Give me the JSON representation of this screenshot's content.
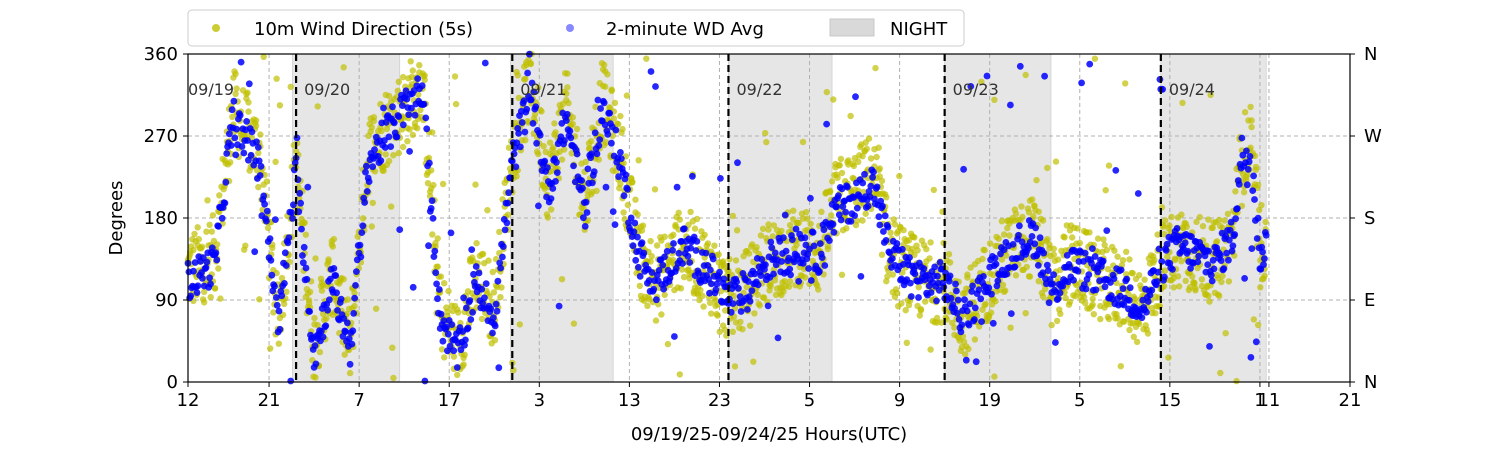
{
  "chart_data": {
    "type": "scatter",
    "xlabel": "09/19/25-09/24/25  Hours(UTC)",
    "ylabel": "Degrees",
    "ylim": [
      0,
      360
    ],
    "yticks": [
      0,
      90,
      180,
      270,
      360
    ],
    "right_ticks": [
      {
        "value": 0,
        "label": "N"
      },
      {
        "value": 90,
        "label": "E"
      },
      {
        "value": 180,
        "label": "S"
      },
      {
        "value": 270,
        "label": "W"
      },
      {
        "value": 360,
        "label": "N"
      }
    ],
    "xlim_hours": [
      0,
      129
    ],
    "xticks": [
      {
        "hour": 0,
        "label": "12"
      },
      {
        "hour": 9,
        "label": "21"
      },
      {
        "hour": 19,
        "label": "7"
      },
      {
        "hour": 29,
        "label": "17"
      },
      {
        "hour": 39,
        "label": "3"
      },
      {
        "hour": 49,
        "label": "13"
      },
      {
        "hour": 59,
        "label": "23"
      },
      {
        "hour": 69,
        "label": "5"
      },
      {
        "hour": 79,
        "label": "9"
      },
      {
        "hour": 89,
        "label": "19"
      },
      {
        "hour": 99,
        "label": "5"
      },
      {
        "hour": 109,
        "label": "15"
      },
      {
        "hour": 119,
        "label": "1"
      },
      {
        "hour": 120,
        "label": "11"
      },
      {
        "hour": 129,
        "label": "21"
      }
    ],
    "grid": true,
    "legend_position": "top",
    "legend": [
      {
        "label": "10m Wind Direction (5s)",
        "kind": "marker",
        "color": "#bfbf00"
      },
      {
        "label": "2-minute WD Avg",
        "kind": "marker",
        "color": "#6b6bff"
      },
      {
        "label": "NIGHT",
        "kind": "patch",
        "color": "#d9d9d9"
      }
    ],
    "day_markers": [
      {
        "hour": 0,
        "label": "09/19",
        "line": false
      },
      {
        "hour": 12,
        "label": "09/20",
        "line": true
      },
      {
        "hour": 36,
        "label": "09/21",
        "line": true
      },
      {
        "hour": 60,
        "label": "09/22",
        "line": true
      },
      {
        "hour": 84,
        "label": "09/23",
        "line": true
      },
      {
        "hour": 108,
        "label": "09/24",
        "line": true
      }
    ],
    "night_bands": [
      [
        11.6,
        23.5
      ],
      [
        35.8,
        47.2
      ],
      [
        60.0,
        71.5
      ],
      [
        84.0,
        95.8
      ],
      [
        108.0,
        119.7
      ]
    ],
    "data_end_hour": 119.7,
    "series": [
      {
        "name": "10m Wind Direction (5s)",
        "color": "#bfbf00",
        "trace": [
          [
            0,
            120
          ],
          [
            3,
            140
          ],
          [
            5,
            300
          ],
          [
            8,
            250
          ],
          [
            10,
            60
          ],
          [
            12,
            240
          ],
          [
            14,
            40
          ],
          [
            16,
            120
          ],
          [
            18,
            40
          ],
          [
            20,
            250
          ],
          [
            22,
            280
          ],
          [
            24,
            300
          ],
          [
            26,
            330
          ],
          [
            28,
            80
          ],
          [
            30,
            40
          ],
          [
            32,
            120
          ],
          [
            34,
            80
          ],
          [
            36,
            250
          ],
          [
            38,
            330
          ],
          [
            40,
            220
          ],
          [
            42,
            300
          ],
          [
            44,
            200
          ],
          [
            46,
            310
          ],
          [
            48,
            250
          ],
          [
            50,
            140
          ],
          [
            52,
            110
          ],
          [
            55,
            150
          ],
          [
            58,
            120
          ],
          [
            60,
            90
          ],
          [
            62,
            100
          ],
          [
            64,
            130
          ],
          [
            66,
            140
          ],
          [
            68,
            150
          ],
          [
            70,
            140
          ],
          [
            72,
            200
          ],
          [
            74,
            210
          ],
          [
            76,
            230
          ],
          [
            78,
            140
          ],
          [
            80,
            120
          ],
          [
            82,
            110
          ],
          [
            84,
            110
          ],
          [
            86,
            70
          ],
          [
            88,
            100
          ],
          [
            90,
            130
          ],
          [
            92,
            150
          ],
          [
            94,
            160
          ],
          [
            96,
            100
          ],
          [
            98,
            130
          ],
          [
            100,
            120
          ],
          [
            102,
            110
          ],
          [
            104,
            100
          ],
          [
            106,
            80
          ],
          [
            108,
            130
          ],
          [
            110,
            150
          ],
          [
            112,
            140
          ],
          [
            114,
            130
          ],
          [
            116,
            160
          ],
          [
            117,
            250
          ],
          [
            118,
            260
          ],
          [
            119,
            150
          ],
          [
            119.7,
            160
          ]
        ]
      },
      {
        "name": "2-minute WD Avg",
        "color": "#0000ff",
        "trace": [
          [
            0,
            110
          ],
          [
            3,
            130
          ],
          [
            5,
            290
          ],
          [
            8,
            240
          ],
          [
            10,
            60
          ],
          [
            12,
            230
          ],
          [
            14,
            30
          ],
          [
            16,
            110
          ],
          [
            18,
            40
          ],
          [
            20,
            240
          ],
          [
            22,
            270
          ],
          [
            24,
            300
          ],
          [
            26,
            320
          ],
          [
            28,
            70
          ],
          [
            30,
            30
          ],
          [
            32,
            110
          ],
          [
            34,
            70
          ],
          [
            36,
            240
          ],
          [
            38,
            320
          ],
          [
            40,
            210
          ],
          [
            42,
            290
          ],
          [
            44,
            190
          ],
          [
            46,
            300
          ],
          [
            48,
            240
          ],
          [
            50,
            140
          ],
          [
            52,
            110
          ],
          [
            55,
            150
          ],
          [
            58,
            120
          ],
          [
            60,
            90
          ],
          [
            62,
            100
          ],
          [
            64,
            130
          ],
          [
            66,
            140
          ],
          [
            68,
            150
          ],
          [
            70,
            140
          ],
          [
            72,
            190
          ],
          [
            74,
            200
          ],
          [
            76,
            220
          ],
          [
            78,
            140
          ],
          [
            80,
            120
          ],
          [
            82,
            110
          ],
          [
            84,
            110
          ],
          [
            86,
            70
          ],
          [
            88,
            100
          ],
          [
            90,
            130
          ],
          [
            92,
            150
          ],
          [
            94,
            160
          ],
          [
            96,
            100
          ],
          [
            98,
            130
          ],
          [
            100,
            120
          ],
          [
            102,
            110
          ],
          [
            104,
            100
          ],
          [
            106,
            80
          ],
          [
            108,
            130
          ],
          [
            110,
            150
          ],
          [
            112,
            140
          ],
          [
            114,
            130
          ],
          [
            116,
            160
          ],
          [
            117,
            250
          ],
          [
            118,
            250
          ],
          [
            119,
            140
          ],
          [
            119.7,
            150
          ]
        ]
      }
    ]
  }
}
